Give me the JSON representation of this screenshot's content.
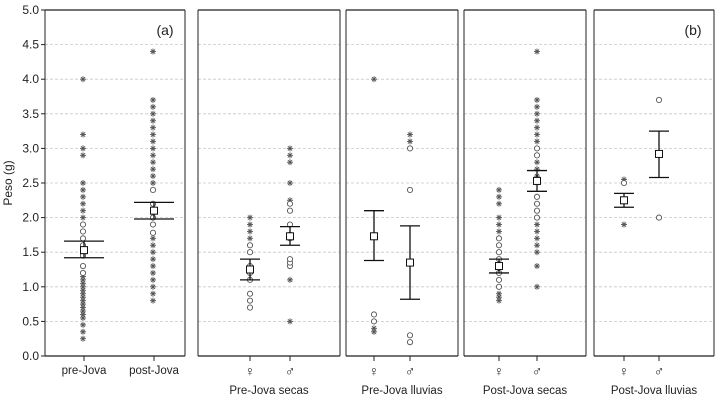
{
  "chart_data": [
    {
      "panel": "(a)",
      "type": "scatter",
      "ylabel": "Peso (g)",
      "ylim": [
        0.0,
        5.0
      ],
      "yticks": [
        "0.0",
        "0.5",
        "1.0",
        "1.5",
        "2.0",
        "2.5",
        "3.0",
        "3.5",
        "4.0",
        "4.5",
        "5.0"
      ],
      "grid": "horizontal dashed",
      "categories": [
        "pre-Jova",
        "post-Jova"
      ],
      "groups": [
        {
          "category": "pre-Jova",
          "mean": 1.53,
          "err_low": 1.42,
          "err_high": 1.66,
          "points_star": [
            0.25,
            0.35,
            0.45,
            0.55,
            0.6,
            0.65,
            0.7,
            0.75,
            0.8,
            0.85,
            0.9,
            0.95,
            1.0,
            1.05,
            1.1,
            1.15,
            2.0,
            2.1,
            2.2,
            2.3,
            2.4,
            2.5,
            2.9,
            3.0,
            3.2,
            4.0
          ],
          "points_circle": [
            1.2,
            1.3,
            1.45,
            1.6,
            1.7,
            1.8,
            1.9
          ]
        },
        {
          "category": "post-Jova",
          "mean": 2.1,
          "err_low": 1.98,
          "err_high": 2.22,
          "points_star": [
            0.8,
            0.9,
            1.0,
            1.1,
            1.2,
            1.3,
            1.4,
            1.5,
            1.6,
            1.7,
            2.5,
            2.6,
            2.7,
            2.8,
            2.9,
            3.0,
            3.1,
            3.2,
            3.3,
            3.4,
            3.5,
            3.6,
            3.7,
            4.4
          ],
          "points_circle": [
            1.78,
            1.9,
            2.0,
            2.1,
            2.2,
            2.4
          ]
        }
      ]
    },
    {
      "panel": "(b)",
      "type": "scatter",
      "ylim": [
        0.0,
        5.0
      ],
      "grid": "horizontal dashed",
      "sex_symbols": [
        "♀",
        "♂"
      ],
      "groups": [
        {
          "label": "Pre-Jova secas",
          "subgroups": [
            {
              "sex": "♀",
              "mean": 1.25,
              "err_low": 1.1,
              "err_high": 1.4,
              "points_star": [
                1.7,
                1.8,
                1.9,
                2.0
              ],
              "points_circle": [
                0.7,
                0.8,
                0.9,
                1.1,
                1.2,
                1.3,
                1.5,
                1.6
              ]
            },
            {
              "sex": "♂",
              "mean": 1.73,
              "err_low": 1.6,
              "err_high": 1.87,
              "points_star": [
                0.5,
                1.1,
                2.25,
                2.5,
                2.8,
                2.9,
                3.0
              ],
              "points_circle": [
                1.3,
                1.35,
                1.4,
                1.7,
                1.75,
                1.9,
                2.1,
                2.2
              ]
            }
          ]
        },
        {
          "label": "Pre-Jova lluvias",
          "subgroups": [
            {
              "sex": "♀",
              "mean": 1.73,
              "err_low": 1.38,
              "err_high": 2.1,
              "points_star": [
                0.35,
                0.4,
                4.0
              ],
              "points_circle": [
                0.5,
                0.6
              ]
            },
            {
              "sex": "♂",
              "mean": 1.35,
              "err_low": 0.82,
              "err_high": 1.88,
              "points_star": [
                3.1,
                3.2
              ],
              "points_circle": [
                0.2,
                0.3,
                2.4,
                3.0
              ]
            }
          ]
        },
        {
          "label": "Post-Jova secas",
          "subgroups": [
            {
              "sex": "♀",
              "mean": 1.3,
              "err_low": 1.2,
              "err_high": 1.4,
              "points_star": [
                0.8,
                0.85,
                0.9,
                1.8,
                1.9,
                2.0,
                2.2,
                2.3,
                2.4
              ],
              "points_circle": [
                1.0,
                1.1,
                1.2,
                1.4,
                1.5,
                1.6,
                1.7
              ]
            },
            {
              "sex": "♂",
              "mean": 2.53,
              "err_low": 2.38,
              "err_high": 2.68,
              "points_star": [
                1.0,
                1.3,
                1.5,
                1.6,
                1.7,
                1.8,
                1.9,
                2.5,
                2.6,
                2.7,
                2.8,
                3.1,
                3.2,
                3.3,
                3.4,
                3.5,
                3.6,
                3.7,
                4.4
              ],
              "points_circle": [
                2.0,
                2.1,
                2.2,
                2.3,
                2.9,
                3.0
              ]
            }
          ]
        },
        {
          "label": "Post-Jova lluvias",
          "subgroups": [
            {
              "sex": "♀",
              "mean": 2.25,
              "err_low": 2.15,
              "err_high": 2.35,
              "points_star": [
                1.9,
                2.55
              ],
              "points_circle": [
                2.5
              ]
            },
            {
              "sex": "♂",
              "mean": 2.92,
              "err_low": 2.58,
              "err_high": 3.25,
              "points_star": [],
              "points_circle": [
                2.0,
                3.7
              ]
            }
          ]
        }
      ]
    }
  ]
}
